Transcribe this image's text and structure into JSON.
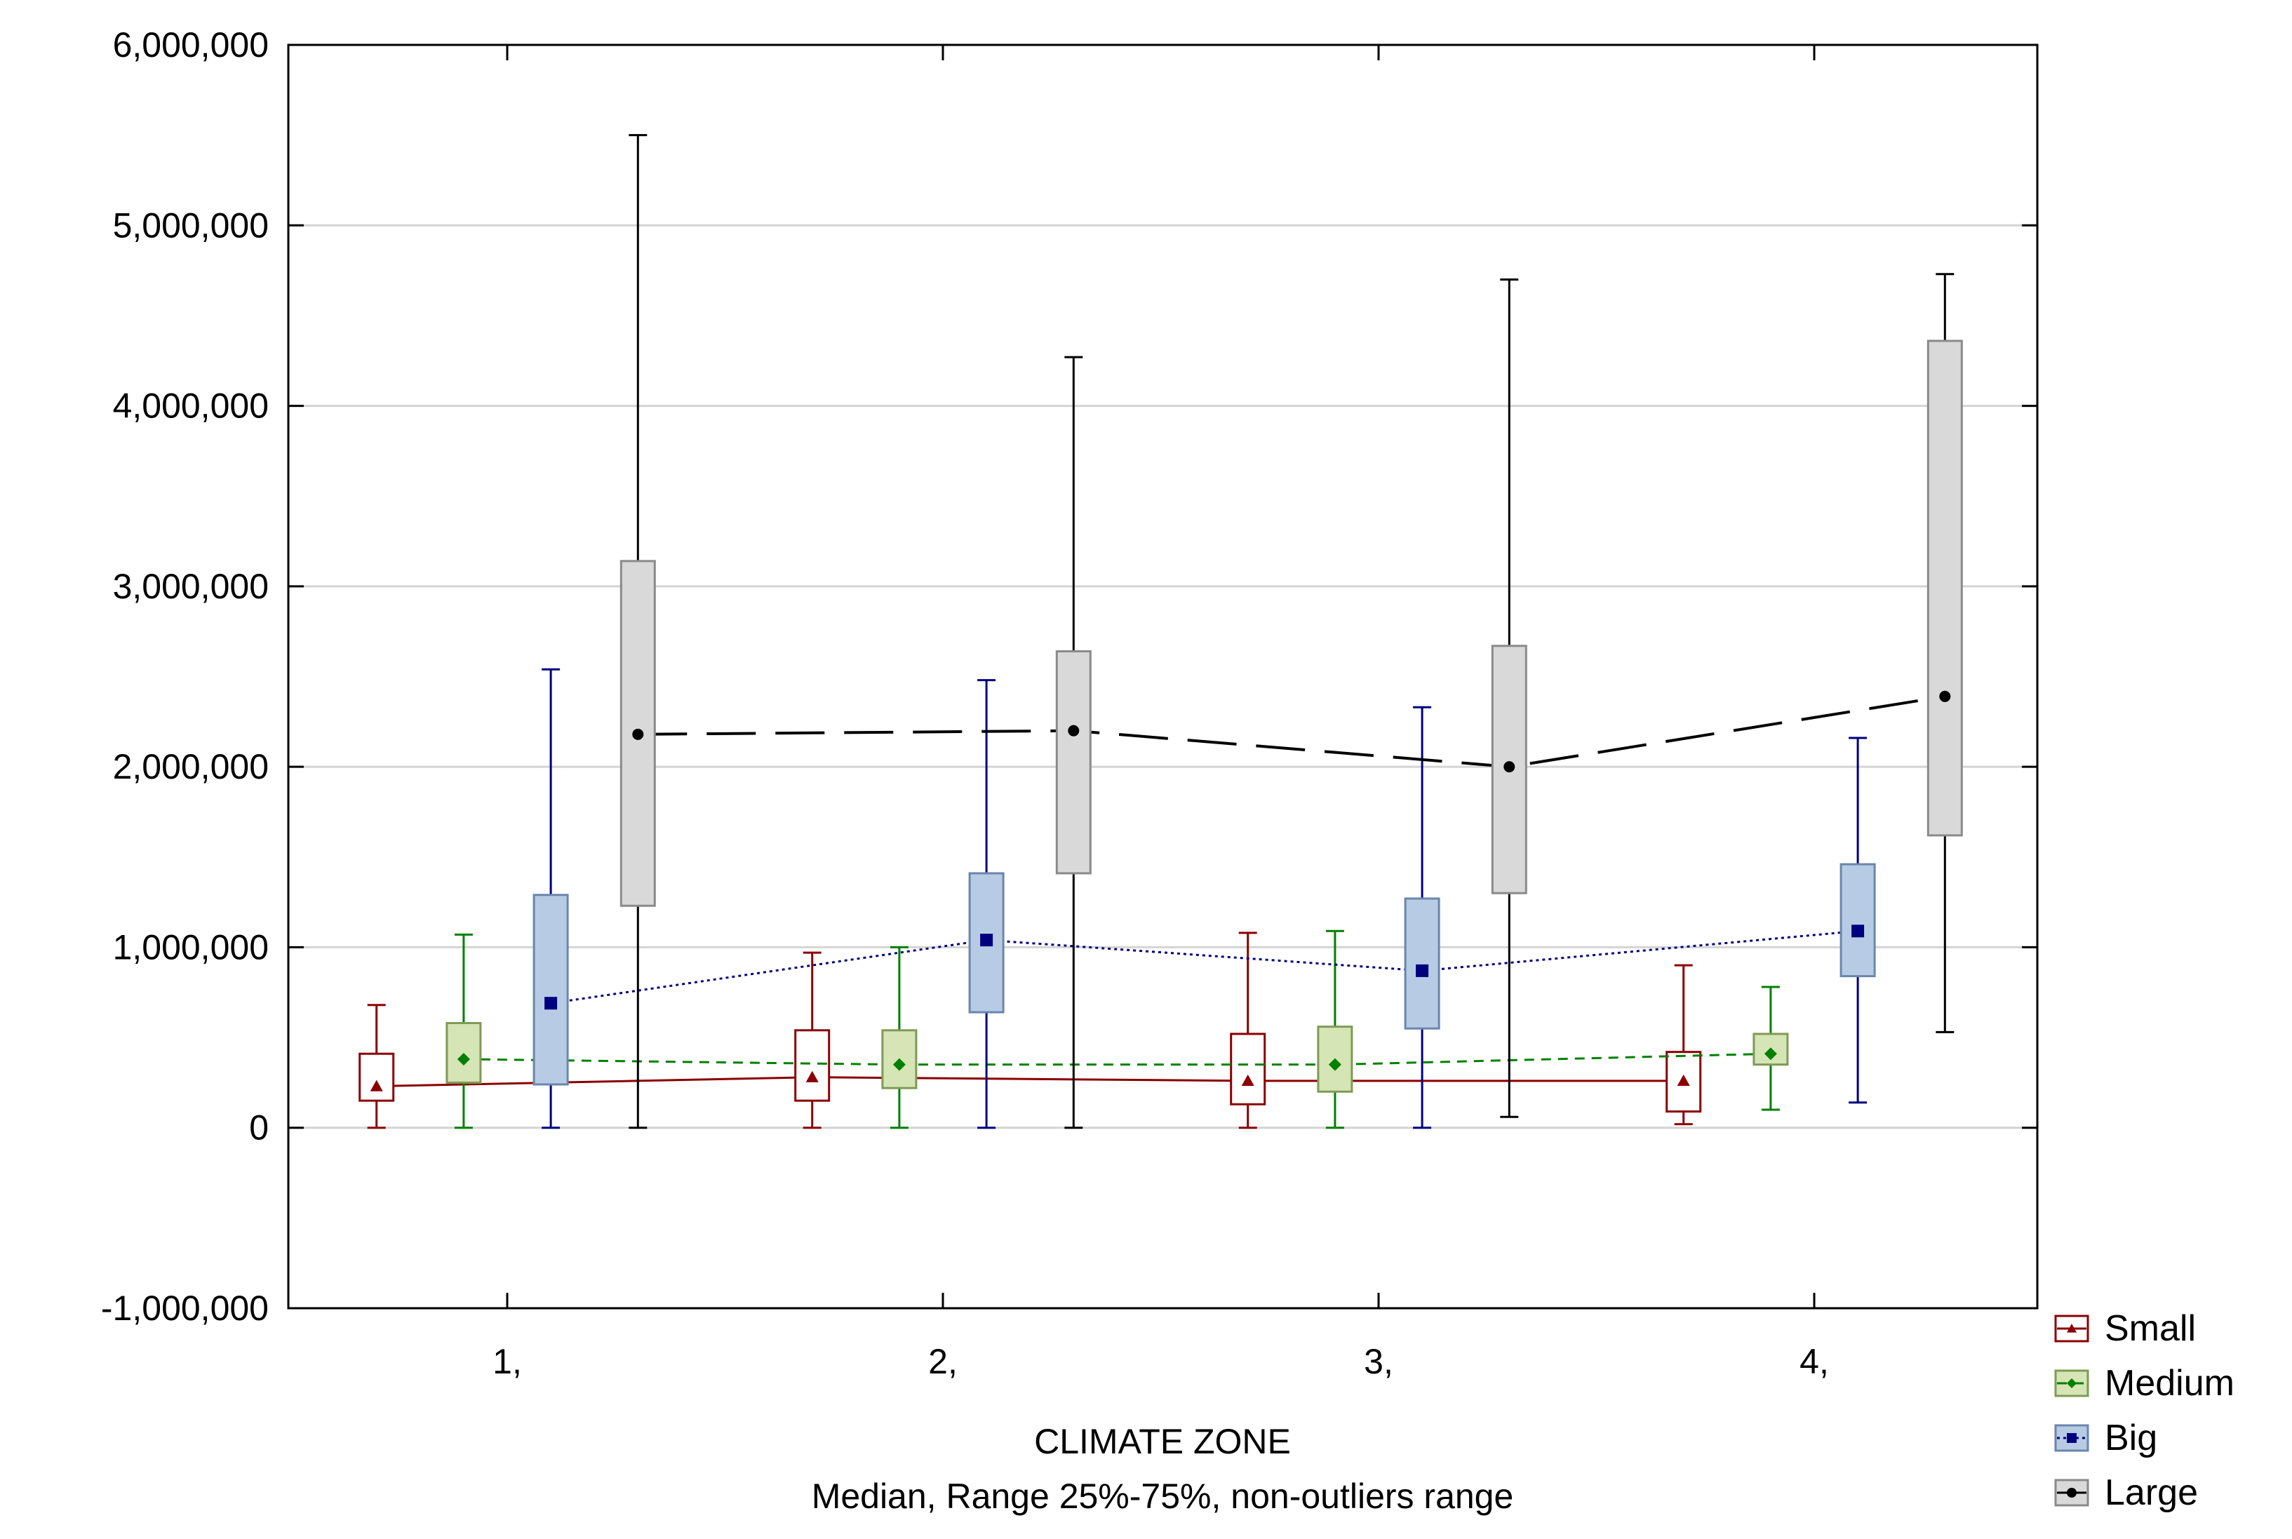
{
  "chart_data": {
    "type": "box",
    "xlabel": "CLIMATE ZONE",
    "subtitle": "Median, Range 25%-75%, non-outliers range",
    "categories": [
      "1,",
      "2,",
      "3,",
      "4,"
    ],
    "ylim": [
      -1000000,
      6000000
    ],
    "yticks": [
      -1000000,
      0,
      1000000,
      2000000,
      3000000,
      4000000,
      5000000,
      6000000
    ],
    "ytick_labels": [
      "-1,000,000",
      "0",
      "1,000,000",
      "2,000,000",
      "3,000,000",
      "4,000,000",
      "5,000,000",
      "6,000,000"
    ],
    "grid": true,
    "legend_position": "bottom-right outside",
    "series": [
      {
        "name": "Small",
        "color": "#8B0000",
        "fill": "#ffffff",
        "marker": "triangle",
        "line": "solid",
        "offset": -0.3,
        "boxes": [
          {
            "min": 0,
            "q1": 150000,
            "median": 230000,
            "q3": 410000,
            "max": 680000
          },
          {
            "min": 0,
            "q1": 150000,
            "median": 280000,
            "q3": 540000,
            "max": 970000
          },
          {
            "min": 0,
            "q1": 130000,
            "median": 260000,
            "q3": 520000,
            "max": 1080000
          },
          {
            "min": 20000,
            "q1": 90000,
            "median": 260000,
            "q3": 420000,
            "max": 900000
          }
        ]
      },
      {
        "name": "Medium",
        "color": "#008000",
        "fill": "#d6e5b5",
        "marker": "diamond",
        "line": "dashed",
        "offset": -0.1,
        "boxes": [
          {
            "min": 0,
            "q1": 250000,
            "median": 380000,
            "q3": 580000,
            "max": 1070000
          },
          {
            "min": 0,
            "q1": 220000,
            "median": 350000,
            "q3": 540000,
            "max": 1000000
          },
          {
            "min": 0,
            "q1": 200000,
            "median": 350000,
            "q3": 560000,
            "max": 1090000
          },
          {
            "min": 100000,
            "q1": 350000,
            "median": 410000,
            "q3": 520000,
            "max": 780000
          }
        ]
      },
      {
        "name": "Big",
        "color": "#00007F",
        "fill": "#b7cce4",
        "marker": "square",
        "line": "dotted",
        "offset": 0.1,
        "boxes": [
          {
            "min": 0,
            "q1": 240000,
            "median": 690000,
            "q3": 1290000,
            "max": 2540000
          },
          {
            "min": 0,
            "q1": 640000,
            "median": 1040000,
            "q3": 1410000,
            "max": 2480000
          },
          {
            "min": 0,
            "q1": 550000,
            "median": 870000,
            "q3": 1270000,
            "max": 2330000
          },
          {
            "min": 140000,
            "q1": 840000,
            "median": 1090000,
            "q3": 1460000,
            "max": 2160000
          }
        ]
      },
      {
        "name": "Large",
        "color": "#000000",
        "fill": "#d9d9d9",
        "marker": "circle",
        "line": "longdash",
        "offset": 0.3,
        "boxes": [
          {
            "min": 0,
            "q1": 1230000,
            "median": 2180000,
            "q3": 3140000,
            "max": 5500000
          },
          {
            "min": 0,
            "q1": 1410000,
            "median": 2200000,
            "q3": 2640000,
            "max": 4270000
          },
          {
            "min": 60000,
            "q1": 1300000,
            "median": 2000000,
            "q3": 2670000,
            "max": 4700000
          },
          {
            "min": 530000,
            "q1": 1620000,
            "median": 2390000,
            "q3": 4360000,
            "max": 4730000
          }
        ]
      }
    ]
  }
}
